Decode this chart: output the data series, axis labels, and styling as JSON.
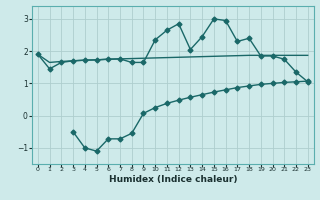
{
  "xlabel": "Humidex (Indice chaleur)",
  "bg_color": "#ceeaea",
  "grid_color": "#aecece",
  "line_color": "#1a6868",
  "xlim": [
    -0.5,
    23.5
  ],
  "ylim": [
    -1.5,
    3.4
  ],
  "yticks": [
    -1,
    0,
    1,
    2,
    3
  ],
  "xticks": [
    0,
    1,
    2,
    3,
    4,
    5,
    6,
    7,
    8,
    9,
    10,
    11,
    12,
    13,
    14,
    15,
    16,
    17,
    18,
    19,
    20,
    21,
    22,
    23
  ],
  "line1_x": [
    0,
    1,
    2,
    3,
    4,
    5,
    6,
    7,
    8,
    9,
    10,
    11,
    12,
    13,
    14,
    15,
    16,
    17,
    18,
    19,
    20,
    21,
    22,
    23
  ],
  "line1_y": [
    1.9,
    1.65,
    1.68,
    1.7,
    1.72,
    1.73,
    1.75,
    1.76,
    1.77,
    1.78,
    1.79,
    1.8,
    1.81,
    1.82,
    1.83,
    1.84,
    1.85,
    1.86,
    1.87,
    1.87,
    1.87,
    1.87,
    1.87,
    1.87
  ],
  "line2_x": [
    0,
    1,
    2,
    3,
    4,
    5,
    6,
    7,
    8,
    9,
    10,
    11,
    12,
    13,
    14,
    15,
    16,
    17,
    18,
    19,
    20,
    21,
    22,
    23
  ],
  "line2_y": [
    1.9,
    1.45,
    1.65,
    1.7,
    1.72,
    1.73,
    1.75,
    1.76,
    1.65,
    1.65,
    2.35,
    2.65,
    2.85,
    2.05,
    2.45,
    3.0,
    2.95,
    2.3,
    2.4,
    1.85,
    1.85,
    1.75,
    1.35,
    1.05
  ],
  "line3_x": [
    3,
    4,
    5,
    6,
    7,
    8,
    9,
    10,
    11,
    12,
    13,
    14,
    15,
    16,
    17,
    18,
    19,
    20,
    21,
    22,
    23
  ],
  "line3_y": [
    -0.5,
    -1.0,
    -1.1,
    -0.72,
    -0.72,
    -0.55,
    0.07,
    0.25,
    0.38,
    0.48,
    0.57,
    0.65,
    0.73,
    0.8,
    0.87,
    0.92,
    0.97,
    1.0,
    1.03,
    1.05,
    1.07
  ],
  "marker": "D",
  "marker_size": 2.5,
  "linewidth": 1.0
}
